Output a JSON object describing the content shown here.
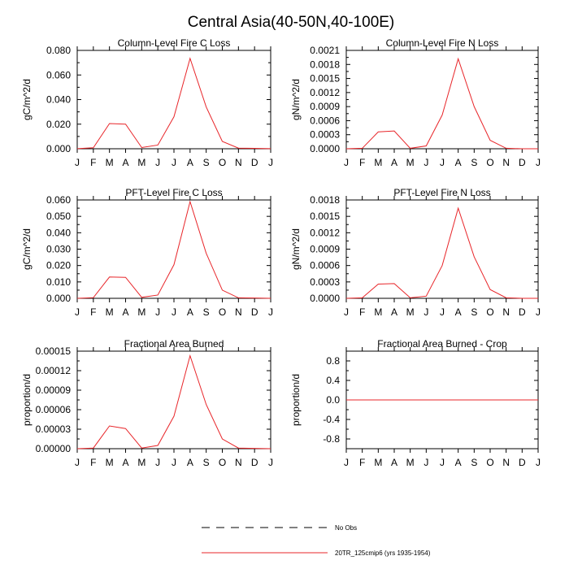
{
  "figure_title": "Central Asia(40-50N,40-100E)",
  "legend": {
    "placement": "bottom-center",
    "entries": [
      {
        "label": "No Obs",
        "style": "dashed",
        "color": "#000000"
      },
      {
        "label": "20TR_125cmip6 (yrs 1935-1954)",
        "style": "solid",
        "color": "#e8262a"
      }
    ]
  },
  "chart_data": [
    {
      "type": "line",
      "title": "Column-Level Fire C Loss",
      "ylabel": "gC/m^2/d",
      "xlabel": "",
      "categories": [
        "J",
        "F",
        "M",
        "A",
        "M",
        "J",
        "J",
        "A",
        "S",
        "O",
        "N",
        "D",
        "J"
      ],
      "ylim": [
        0,
        0.08
      ],
      "yticks": [
        "0.000",
        "0.020",
        "0.040",
        "0.060",
        "0.080"
      ],
      "grid": false,
      "series": [
        {
          "name": "20TR_125cmip6 (yrs 1935-1954)",
          "color": "#e8262a",
          "values": [
            0.0001,
            0.0008,
            0.0205,
            0.02,
            0.001,
            0.003,
            0.026,
            0.0735,
            0.034,
            0.006,
            0.0005,
            0.0003,
            0.0001
          ]
        }
      ]
    },
    {
      "type": "line",
      "title": "Column-Level Fire N Loss",
      "ylabel": "gN/m^2/d",
      "xlabel": "",
      "categories": [
        "J",
        "F",
        "M",
        "A",
        "M",
        "J",
        "J",
        "A",
        "S",
        "O",
        "N",
        "D",
        "J"
      ],
      "ylim": [
        0,
        0.0021
      ],
      "yticks": [
        "0.0000",
        "0.0003",
        "0.0006",
        "0.0009",
        "0.0012",
        "0.0015",
        "0.0018",
        "0.0021"
      ],
      "grid": false,
      "series": [
        {
          "name": "20TR_125cmip6 (yrs 1935-1954)",
          "color": "#e8262a",
          "values": [
            0.0,
            1e-05,
            0.00036,
            0.00038,
            1e-05,
            6e-05,
            0.00072,
            0.00192,
            0.0009,
            0.00018,
            1e-05,
            0.0,
            0.0
          ]
        }
      ]
    },
    {
      "type": "line",
      "title": "PFT-Level Fire C Loss",
      "ylabel": "gC/m^2/d",
      "xlabel": "",
      "categories": [
        "J",
        "F",
        "M",
        "A",
        "M",
        "J",
        "J",
        "A",
        "S",
        "O",
        "N",
        "D",
        "J"
      ],
      "ylim": [
        0,
        0.06
      ],
      "yticks": [
        "0.000",
        "0.010",
        "0.020",
        "0.030",
        "0.040",
        "0.050",
        "0.060"
      ],
      "grid": false,
      "series": [
        {
          "name": "20TR_125cmip6 (yrs 1935-1954)",
          "color": "#e8262a",
          "values": [
            0.0,
            0.0004,
            0.013,
            0.0128,
            0.0006,
            0.002,
            0.0205,
            0.059,
            0.0275,
            0.005,
            0.0003,
            0.0002,
            0.0
          ]
        }
      ]
    },
    {
      "type": "line",
      "title": "PFT-Level Fire N Loss",
      "ylabel": "gN/m^2/d",
      "xlabel": "",
      "categories": [
        "J",
        "F",
        "M",
        "A",
        "M",
        "J",
        "J",
        "A",
        "S",
        "O",
        "N",
        "D",
        "J"
      ],
      "ylim": [
        0,
        0.0018
      ],
      "yticks": [
        "0.0000",
        "0.0003",
        "0.0006",
        "0.0009",
        "0.0012",
        "0.0015",
        "0.0018"
      ],
      "grid": false,
      "series": [
        {
          "name": "20TR_125cmip6 (yrs 1935-1954)",
          "color": "#e8262a",
          "values": [
            0.0,
            1e-05,
            0.00026,
            0.00027,
            1e-05,
            4e-05,
            0.0006,
            0.00165,
            0.00076,
            0.00016,
            1e-05,
            0.0,
            0.0
          ]
        }
      ]
    },
    {
      "type": "line",
      "title": "Fractional Area Burned",
      "ylabel": "proportion/d",
      "xlabel": "",
      "categories": [
        "J",
        "F",
        "M",
        "A",
        "M",
        "J",
        "J",
        "A",
        "S",
        "O",
        "N",
        "D",
        "J"
      ],
      "ylim": [
        0,
        0.00015
      ],
      "yticks": [
        "0.00000",
        "0.00003",
        "0.00006",
        "0.00009",
        "0.00012",
        "0.00015"
      ],
      "grid": false,
      "series": [
        {
          "name": "20TR_125cmip6 (yrs 1935-1954)",
          "color": "#e8262a",
          "values": [
            0.0,
            1e-06,
            3.5e-05,
            3.1e-05,
            1e-06,
            5e-06,
            5e-05,
            0.000143,
            6.8e-05,
            1.5e-05,
            1e-06,
            5e-07,
            0.0
          ]
        }
      ]
    },
    {
      "type": "line",
      "title": "Fractional Area Burned - Crop",
      "ylabel": "proportion/d",
      "xlabel": "",
      "categories": [
        "J",
        "F",
        "M",
        "A",
        "M",
        "J",
        "J",
        "A",
        "S",
        "O",
        "N",
        "D",
        "J"
      ],
      "ylim": [
        -1.0,
        1.0
      ],
      "yticks": [
        "-0.8",
        "-0.4",
        "0.0",
        "0.4",
        "0.8"
      ],
      "ytick_values": [
        -0.8,
        -0.4,
        0.0,
        0.4,
        0.8
      ],
      "grid": false,
      "series": [
        {
          "name": "20TR_125cmip6 (yrs 1935-1954)",
          "color": "#e8262a",
          "values": [
            0,
            0,
            0,
            0,
            0,
            0,
            0,
            0,
            0,
            0,
            0,
            0,
            0
          ]
        }
      ]
    }
  ]
}
